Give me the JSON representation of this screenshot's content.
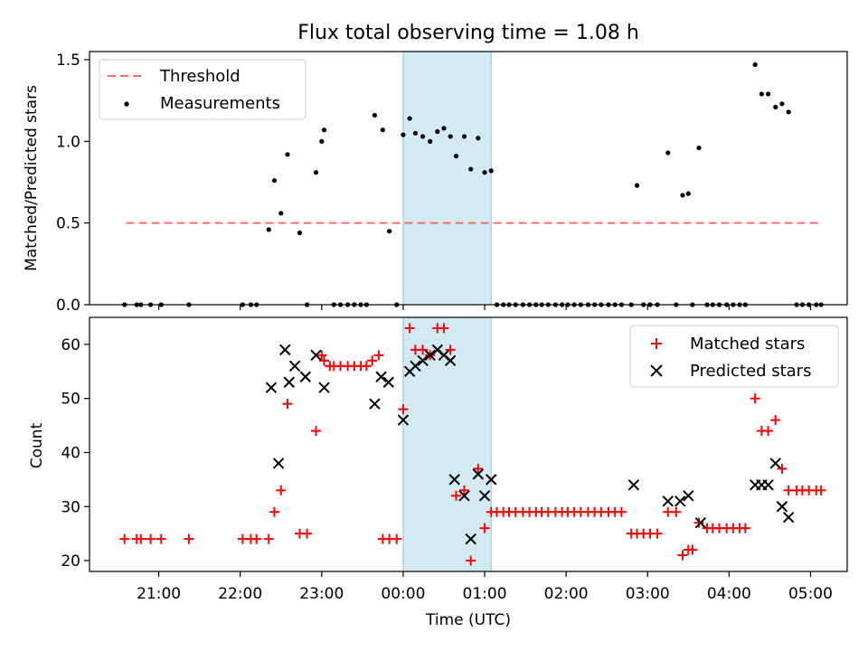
{
  "chart_data": [
    {
      "type": "scatter",
      "title": "Flux total observing time = 1.08 h",
      "xlabel": "",
      "ylabel": "Matched/Predicted stars",
      "ylim": [
        0,
        1.55
      ],
      "xlim": [
        -3.85,
        5.45
      ],
      "yticks": [
        0.0,
        0.5,
        1.0,
        1.5
      ],
      "ytick_labels": [
        "0.0",
        "0.5",
        "1.0",
        "1.5"
      ],
      "legend_position": "top-left",
      "shaded_span": {
        "x0": 0.0,
        "x1": 1.08,
        "color": "#add8e6"
      },
      "threshold": {
        "name": "Threshold",
        "value": 0.5,
        "x_range": [
          -3.4,
          5.1
        ],
        "color": "#ff6b6b"
      },
      "series": [
        {
          "name": "Measurements",
          "color": "#000000",
          "marker": "dot",
          "x": [
            -3.42,
            -3.27,
            -3.22,
            -3.1,
            -2.97,
            -2.63,
            -1.97,
            -1.87,
            -1.8,
            -1.65,
            -1.58,
            -1.5,
            -1.42,
            -1.27,
            -1.18,
            -1.07,
            -1.0,
            -0.97,
            -0.85,
            -0.77,
            -0.68,
            -0.6,
            -0.52,
            -0.45,
            -0.35,
            -0.25,
            -0.17,
            -0.08,
            0.0,
            0.08,
            0.15,
            0.24,
            0.33,
            0.42,
            0.5,
            0.58,
            0.65,
            0.75,
            0.83,
            0.92,
            1.0,
            1.08,
            1.15,
            1.23,
            1.3,
            1.38,
            1.47,
            1.55,
            1.63,
            1.7,
            1.78,
            1.87,
            1.95,
            2.02,
            2.1,
            2.18,
            2.27,
            2.35,
            2.43,
            2.52,
            2.6,
            2.68,
            2.8,
            2.87,
            2.95,
            3.03,
            3.12,
            3.25,
            3.35,
            3.43,
            3.5,
            3.55,
            3.63,
            3.73,
            3.8,
            3.88,
            3.97,
            4.05,
            4.13,
            4.2,
            4.32,
            4.4,
            4.48,
            4.57,
            4.65,
            4.73,
            4.83,
            4.9,
            4.98,
            5.07,
            5.13
          ],
          "y": [
            0,
            0,
            0,
            0,
            0,
            0,
            0,
            0,
            0,
            0.46,
            0.76,
            0.56,
            0.92,
            0.44,
            0,
            0.81,
            1.0,
            1.07,
            0,
            0,
            0,
            0,
            0,
            0,
            1.16,
            1.07,
            0.45,
            0,
            1.04,
            1.14,
            1.05,
            1.03,
            1.0,
            1.06,
            1.08,
            1.03,
            0.91,
            1.03,
            0.83,
            1.02,
            0.81,
            0.82,
            0,
            0,
            0,
            0,
            0,
            0,
            0,
            0,
            0,
            0,
            0,
            0,
            0,
            0,
            0,
            0,
            0,
            0,
            0,
            0,
            0,
            0.73,
            0,
            0,
            0,
            0.93,
            0,
            0.67,
            0.68,
            0,
            0.96,
            0,
            0,
            0,
            0,
            0,
            0,
            0,
            1.47,
            1.29,
            1.29,
            1.21,
            1.23,
            1.18,
            0,
            0,
            0,
            0,
            0
          ]
        }
      ]
    },
    {
      "type": "scatter",
      "title": "",
      "xlabel": "Time (UTC)",
      "ylabel": "Count",
      "ylim": [
        18,
        65
      ],
      "xlim": [
        -3.85,
        5.45
      ],
      "yticks": [
        20,
        30,
        40,
        50,
        60
      ],
      "ytick_labels": [
        "20",
        "30",
        "40",
        "50",
        "60"
      ],
      "xticks": [
        -3,
        -2,
        -1,
        0,
        1,
        2,
        3,
        4,
        5
      ],
      "xtick_labels": [
        "21:00",
        "22:00",
        "23:00",
        "00:00",
        "01:00",
        "02:00",
        "03:00",
        "04:00",
        "05:00"
      ],
      "legend_position": "top-right",
      "shaded_span": {
        "x0": 0.0,
        "x1": 1.08,
        "color": "#add8e6"
      },
      "series": [
        {
          "name": "Matched stars",
          "color": "#ff0000",
          "marker": "plus",
          "x": [
            -3.42,
            -3.27,
            -3.22,
            -3.1,
            -2.97,
            -2.63,
            -1.97,
            -1.87,
            -1.8,
            -1.65,
            -1.58,
            -1.5,
            -1.42,
            -1.27,
            -1.18,
            -1.07,
            -1.0,
            -0.97,
            -0.9,
            -0.85,
            -0.77,
            -0.68,
            -0.6,
            -0.52,
            -0.45,
            -0.38,
            -0.3,
            -0.25,
            -0.17,
            -0.08,
            0.0,
            0.08,
            0.15,
            0.24,
            0.33,
            0.42,
            0.5,
            0.58,
            0.65,
            0.75,
            0.83,
            0.92,
            1.0,
            1.08,
            1.15,
            1.23,
            1.3,
            1.38,
            1.47,
            1.55,
            1.63,
            1.7,
            1.78,
            1.87,
            1.95,
            2.02,
            2.1,
            2.18,
            2.27,
            2.35,
            2.43,
            2.52,
            2.6,
            2.68,
            2.8,
            2.87,
            2.95,
            3.03,
            3.12,
            3.25,
            3.35,
            3.43,
            3.5,
            3.55,
            3.63,
            3.73,
            3.8,
            3.88,
            3.97,
            4.05,
            4.13,
            4.2,
            4.32,
            4.4,
            4.48,
            4.57,
            4.65,
            4.73,
            4.83,
            4.9,
            4.98,
            5.07,
            5.13
          ],
          "y": [
            24,
            24,
            24,
            24,
            24,
            24,
            24,
            24,
            24,
            24,
            29,
            33,
            49,
            25,
            25,
            44,
            58,
            57,
            56,
            56,
            56,
            56,
            56,
            56,
            56,
            57,
            58,
            24,
            24,
            24,
            48,
            63,
            59,
            59,
            58,
            63,
            63,
            59,
            32,
            33,
            20,
            37,
            26,
            29,
            29,
            29,
            29,
            29,
            29,
            29,
            29,
            29,
            29,
            29,
            29,
            29,
            29,
            29,
            29,
            29,
            29,
            29,
            29,
            29,
            25,
            25,
            25,
            25,
            25,
            29,
            29,
            21,
            22,
            22,
            27,
            26,
            26,
            26,
            26,
            26,
            26,
            26,
            50,
            44,
            44,
            46,
            37,
            33,
            33,
            33,
            33,
            33,
            33
          ]
        },
        {
          "name": "Predicted stars",
          "color": "#000000",
          "marker": "x",
          "x": [
            -1.62,
            -1.53,
            -1.45,
            -1.4,
            -1.33,
            -1.2,
            -1.07,
            -0.97,
            -0.35,
            -0.27,
            -0.18,
            0.0,
            0.08,
            0.15,
            0.24,
            0.33,
            0.42,
            0.5,
            0.58,
            0.63,
            0.75,
            0.83,
            0.92,
            1.0,
            1.08,
            2.83,
            3.25,
            3.4,
            3.5,
            3.65,
            4.32,
            4.4,
            4.48,
            4.57,
            4.65,
            4.73
          ],
          "y": [
            52,
            38,
            59,
            53,
            56,
            54,
            58,
            52,
            49,
            54,
            53,
            46,
            55,
            56,
            57,
            58,
            59,
            58,
            57,
            35,
            32,
            24,
            36,
            32,
            35,
            34,
            31,
            31,
            32,
            27,
            34,
            34,
            34,
            38,
            30,
            28
          ]
        }
      ]
    }
  ],
  "legends": {
    "top": [
      {
        "label": "Threshold",
        "series": "threshold"
      },
      {
        "label": "Measurements",
        "series": "Measurements"
      }
    ],
    "bottom": [
      {
        "label": "Matched stars",
        "series": "Matched stars"
      },
      {
        "label": "Predicted stars",
        "series": "Predicted stars"
      }
    ]
  }
}
